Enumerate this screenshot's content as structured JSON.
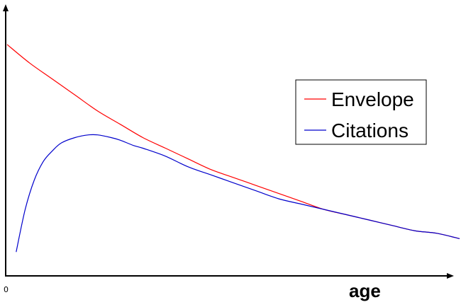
{
  "chart_data": {
    "type": "line",
    "title": "",
    "xlabel": "age",
    "ylabel": "",
    "x_tick_labels": [
      "0"
    ],
    "xlim": [
      0,
      100
    ],
    "ylim": [
      0,
      100
    ],
    "grid": false,
    "legend_position": "right",
    "series": [
      {
        "name": "Envelope",
        "color": "#ff0000",
        "x": [
          0,
          5,
          10,
          15,
          20,
          25,
          30,
          35,
          40,
          45,
          50,
          55,
          60,
          65,
          70,
          75,
          80,
          85,
          90,
          95,
          100
        ],
        "y": [
          87,
          80,
          74,
          68,
          62,
          57,
          52,
          48,
          44,
          40,
          37,
          34,
          31,
          28,
          25,
          23,
          21,
          19,
          17,
          16,
          14
        ]
      },
      {
        "name": "Citations",
        "color": "#0000cc",
        "x": [
          2,
          4,
          6,
          8,
          10,
          12,
          15,
          18,
          20,
          23,
          25,
          28,
          30,
          35,
          40,
          45,
          50,
          55,
          60,
          65,
          70,
          75,
          80,
          85,
          90,
          95,
          100
        ],
        "y": [
          9,
          25,
          36,
          43,
          47,
          50,
          52,
          53,
          53,
          52,
          51,
          49,
          48,
          45,
          41,
          38,
          35,
          32,
          29,
          27,
          25,
          23,
          21,
          19,
          17,
          16,
          14
        ]
      }
    ]
  }
}
